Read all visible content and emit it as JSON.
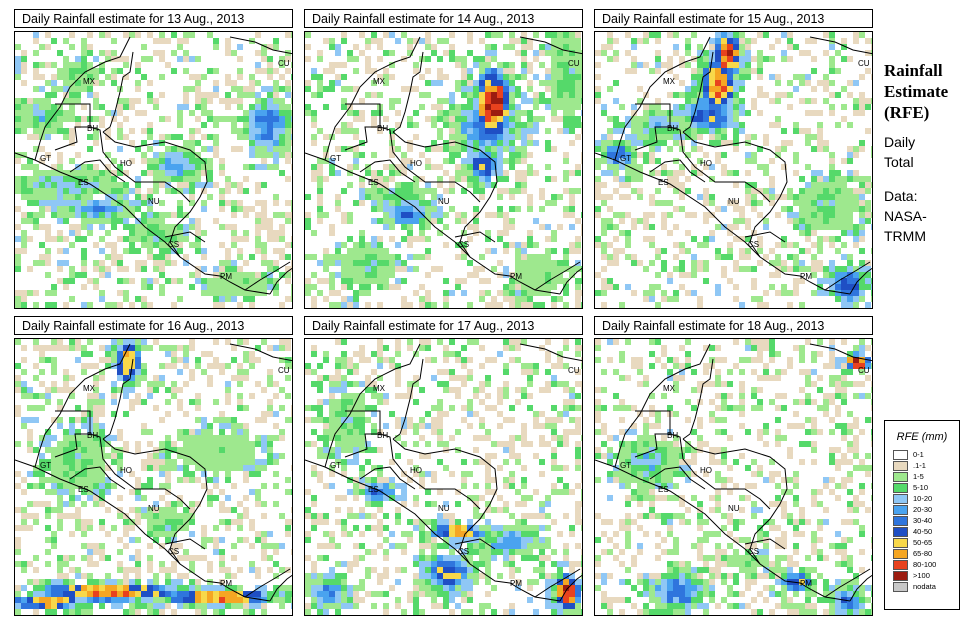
{
  "panels": [
    {
      "title": "Daily Rainfall estimate for  13 Aug., 2013",
      "seed": 13
    },
    {
      "title": "Daily Rainfall estimate for  14 Aug., 2013",
      "seed": 14
    },
    {
      "title": "Daily Rainfall estimate for  15 Aug., 2013",
      "seed": 15
    },
    {
      "title": "Daily Rainfall estimate for  16 Aug., 2013",
      "seed": 16
    },
    {
      "title": "Daily Rainfall estimate for  17 Aug., 2013",
      "seed": 17
    },
    {
      "title": "Daily Rainfall estimate for  18 Aug., 2013",
      "seed": 18
    }
  ],
  "map_labels": [
    "MX",
    "CU",
    "BH",
    "GT",
    "HO",
    "ES",
    "NU",
    "CS",
    "PM"
  ],
  "side": {
    "title_line1": "Rainfall",
    "title_line2": "Estimate",
    "title_line3": "(RFE)",
    "sub_line1": "Daily",
    "sub_line2": "Total",
    "src_line1": "Data:",
    "src_line2": "NASA-",
    "src_line3": "TRMM"
  },
  "legend": {
    "title": "RFE (mm)",
    "items": [
      {
        "label": "0-1",
        "color": "#ffffff"
      },
      {
        "label": ".1-1",
        "color": "#e8d9bf"
      },
      {
        "label": "1-5",
        "color": "#9ee88e"
      },
      {
        "label": "5-10",
        "color": "#55d96a"
      },
      {
        "label": "10-20",
        "color": "#8fc7f5"
      },
      {
        "label": "20-30",
        "color": "#4aa3ef"
      },
      {
        "label": "30-40",
        "color": "#2f75dd"
      },
      {
        "label": "40-50",
        "color": "#1f4fc4"
      },
      {
        "label": "50-65",
        "color": "#f8d84a"
      },
      {
        "label": "65-80",
        "color": "#f5a623"
      },
      {
        "label": "80-100",
        "color": "#e8421e"
      },
      {
        "label": ">100",
        "color": "#9c1c10"
      },
      {
        "label": "nodata",
        "color": "#c8c8c8"
      }
    ]
  }
}
